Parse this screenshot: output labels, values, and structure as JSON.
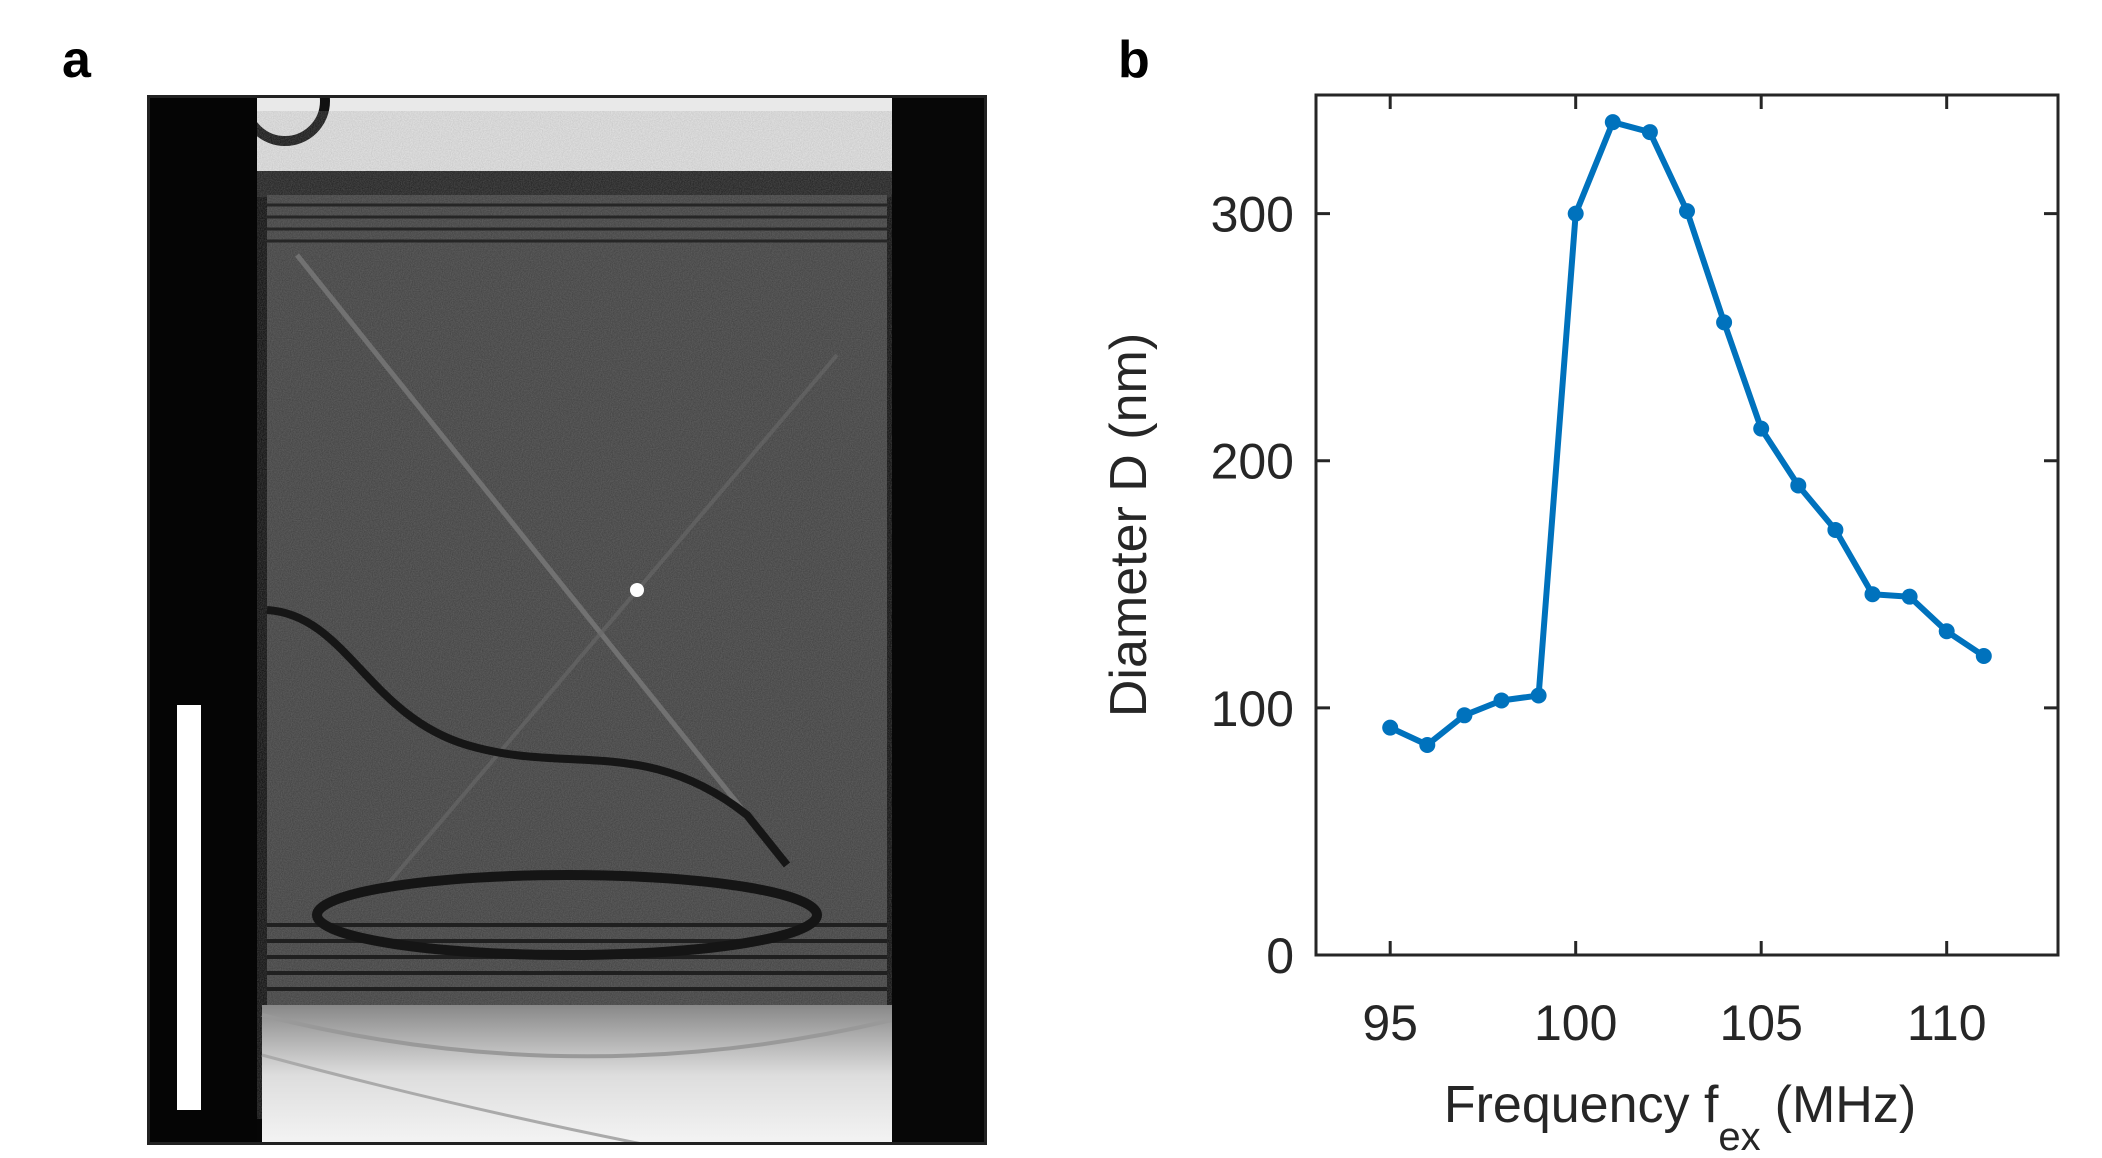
{
  "panels": {
    "a_label": "a",
    "b_label": "b"
  },
  "micrograph": {
    "description_icon": "microscope-image",
    "scale_bar": "scale-bar-icon"
  },
  "chart_data": {
    "type": "line",
    "title": "",
    "xlabel": "Frequency f",
    "xlabel_sub": "ex",
    "xlabel_unit": "(MHz)",
    "ylabel": "Diameter D (nm)",
    "xlim": [
      93,
      113
    ],
    "ylim": [
      0,
      348
    ],
    "xticks": [
      95,
      100,
      105,
      110
    ],
    "yticks": [
      0,
      100,
      200,
      300
    ],
    "grid": false,
    "series": [
      {
        "name": "Diameter",
        "color": "#0072BD",
        "x": [
          95,
          96,
          97,
          98,
          99,
          100,
          101,
          102,
          103,
          104,
          105,
          106,
          107,
          108,
          109,
          110,
          111
        ],
        "y": [
          92,
          85,
          97,
          103,
          105,
          300,
          337,
          333,
          301,
          256,
          213,
          190,
          172,
          146,
          145,
          131,
          121
        ]
      }
    ]
  }
}
